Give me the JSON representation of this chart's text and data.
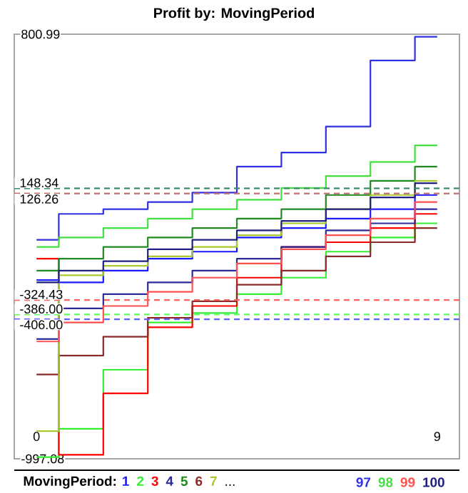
{
  "chart_data": {
    "type": "step",
    "title": "Profit by: MovingPeriod",
    "legend_title": "MovingPeriod:",
    "annotations": [
      "..."
    ],
    "x": [
      0,
      1,
      2,
      3,
      4,
      5,
      6,
      7,
      8,
      9
    ],
    "xlim": [
      -0.5,
      9.5
    ],
    "xticks": [
      0,
      9
    ],
    "ylim": [
      -997.08,
      800.99
    ],
    "yticks": [
      -997.08,
      800.99
    ],
    "grid": false,
    "legend": "bottom",
    "marker": "none",
    "line_style": "solid",
    "ref_lines": [
      {
        "axis": "y",
        "value": 148.34,
        "label": "148.34",
        "color": "#3a8a70",
        "line_style": "dashed"
      },
      {
        "axis": "y",
        "value": 126.26,
        "label": "126.26",
        "color": "#c07070",
        "line_style": "dashed"
      },
      {
        "axis": "y",
        "value": -324.43,
        "label": "-324.43",
        "color": "#ff6060",
        "line_style": "dashed"
      },
      {
        "axis": "y",
        "value": -386.0,
        "label": "-386.00",
        "color": "#60ff60",
        "line_style": "dashed"
      },
      {
        "axis": "y",
        "value": -406.0,
        "label": "-406.00",
        "color": "#6060ff",
        "line_style": "dashed"
      }
    ],
    "series": [
      {
        "name": "1",
        "color": "#1a1aff",
        "values": [
          -240,
          -250,
          -200,
          -150,
          -120,
          -60,
          -20,
          20,
          60,
          120
        ]
      },
      {
        "name": "2",
        "color": "#33ee33",
        "values": [
          -990,
          -870,
          -620,
          -420,
          -380,
          -300,
          -230,
          -120,
          -60,
          0
        ]
      },
      {
        "name": "3",
        "color": "#ff0000",
        "values": [
          -150,
          -980,
          -720,
          -440,
          -350,
          -230,
          -100,
          -80,
          -20,
          40
        ]
      },
      {
        "name": "4",
        "color": "#2a2a9a",
        "values": [
          -490,
          -360,
          -300,
          -250,
          -200,
          -150,
          -100,
          -30,
          0,
          60
        ]
      },
      {
        "name": "5",
        "color": "#208a20",
        "values": [
          -200,
          -150,
          -100,
          -60,
          -20,
          20,
          60,
          120,
          180,
          240
        ]
      },
      {
        "name": "6",
        "color": "#8a2a2a",
        "values": [
          -640,
          -560,
          -480,
          -400,
          -330,
          -260,
          -200,
          -140,
          -80,
          -20
        ]
      },
      {
        "name": "7",
        "color": "#a8c830",
        "values": [
          -880,
          -220,
          -180,
          -140,
          -100,
          -50,
          0,
          60,
          120,
          180
        ]
      },
      {
        "name": "97",
        "color": "#3030e0",
        "values": [
          -70,
          40,
          60,
          90,
          130,
          240,
          300,
          410,
          690,
          790
        ]
      },
      {
        "name": "98",
        "color": "#40e040",
        "values": [
          -100,
          -60,
          -20,
          20,
          60,
          100,
          150,
          200,
          260,
          330
        ]
      },
      {
        "name": "99",
        "color": "#ff5050",
        "values": [
          -500,
          -420,
          -350,
          -290,
          -230,
          -170,
          -110,
          -50,
          20,
          90
        ]
      },
      {
        "name": "100",
        "color": "#202080",
        "values": [
          -250,
          -200,
          -160,
          -110,
          -70,
          -30,
          10,
          60,
          110,
          170
        ]
      }
    ]
  }
}
